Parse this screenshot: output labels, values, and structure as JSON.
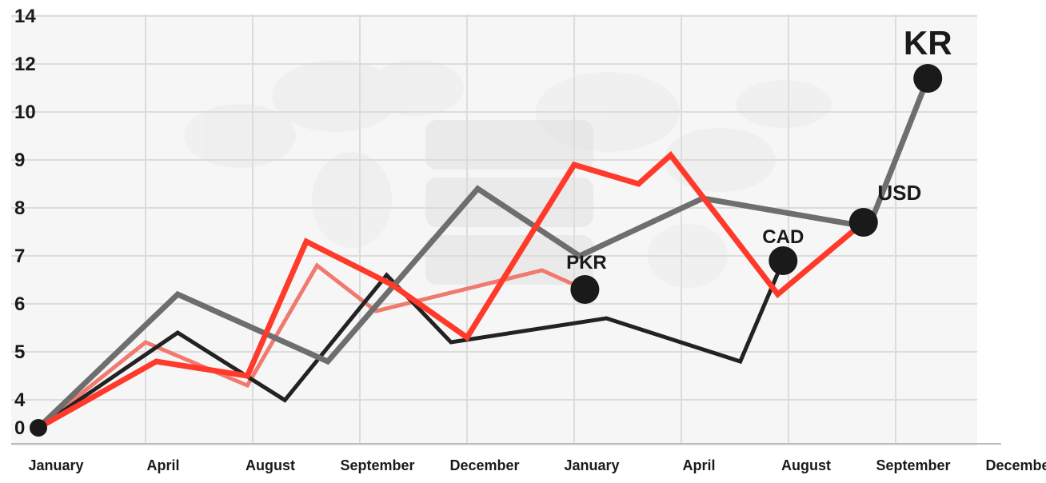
{
  "chart_data": {
    "type": "line",
    "title": "",
    "xlabel": "",
    "ylabel": "",
    "grid": true,
    "legend": "none",
    "y_ticks": [
      "0",
      "4",
      "5",
      "6",
      "7",
      "8",
      "9",
      "10",
      "12",
      "14"
    ],
    "x_ticks": [
      "January",
      "April",
      "August",
      "September",
      "December",
      "January",
      "April",
      "August",
      "September",
      "December"
    ],
    "series": [
      {
        "name": "KR",
        "color": "#6e6e6e",
        "label_position": "end",
        "points": [
          [
            0,
            0
          ],
          [
            1.3,
            6.2
          ],
          [
            2.7,
            4.8
          ],
          [
            4.1,
            8.4
          ],
          [
            5.05,
            7.0
          ],
          [
            6.2,
            8.2
          ],
          [
            7.75,
            7.6
          ],
          [
            8.3,
            11.4
          ]
        ]
      },
      {
        "name": "USD",
        "color": "#ff3a2a",
        "label_position": "end",
        "points": [
          [
            0,
            0
          ],
          [
            1.1,
            4.8
          ],
          [
            1.95,
            4.5
          ],
          [
            2.5,
            7.3
          ],
          [
            3.3,
            6.4
          ],
          [
            4.0,
            5.3
          ],
          [
            5.0,
            8.9
          ],
          [
            5.6,
            8.5
          ],
          [
            5.9,
            9.1
          ],
          [
            6.9,
            6.2
          ],
          [
            7.7,
            7.7
          ]
        ]
      },
      {
        "name": "CAD",
        "color": "#222222",
        "label_position": "end",
        "points": [
          [
            0,
            0
          ],
          [
            1.3,
            5.4
          ],
          [
            2.3,
            3.95
          ],
          [
            3.25,
            6.6
          ],
          [
            3.85,
            5.2
          ],
          [
            5.3,
            5.7
          ],
          [
            6.55,
            4.8
          ],
          [
            6.95,
            6.9
          ]
        ]
      },
      {
        "name": "PKR",
        "color": "#f07a70",
        "label_position": "end",
        "points": [
          [
            0,
            0
          ],
          [
            1.0,
            5.2
          ],
          [
            1.95,
            4.3
          ],
          [
            2.6,
            6.8
          ],
          [
            3.15,
            5.85
          ],
          [
            4.7,
            6.7
          ],
          [
            5.1,
            6.3
          ]
        ]
      }
    ]
  }
}
